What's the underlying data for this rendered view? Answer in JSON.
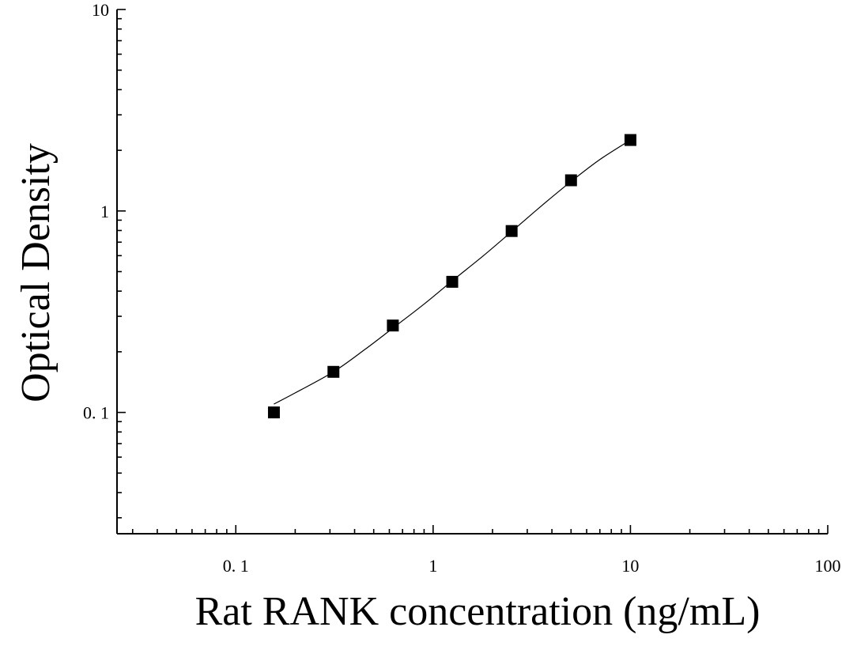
{
  "chart_data": {
    "type": "scatter",
    "title": "",
    "xlabel": "Rat RANK concentration (ng/mL)",
    "ylabel": "Optical Density",
    "x_scale": "log",
    "y_scale": "log",
    "xlim": [
      0.025,
      100
    ],
    "ylim": [
      0.025,
      10
    ],
    "x_ticks": [
      {
        "value": 0.1,
        "label": "0. 1"
      },
      {
        "value": 1,
        "label": "1"
      },
      {
        "value": 10,
        "label": "10"
      },
      {
        "value": 100,
        "label": "100"
      }
    ],
    "y_ticks": [
      {
        "value": 0.1,
        "label": "0. 1"
      },
      {
        "value": 1,
        "label": "1"
      },
      {
        "value": 10,
        "label": "10"
      }
    ],
    "grid": false,
    "legend": "none",
    "series": [
      {
        "marker": "square",
        "color": "#000000",
        "points": [
          {
            "x": 0.156,
            "y": 0.1
          },
          {
            "x": 0.3125,
            "y": 0.159
          },
          {
            "x": 0.625,
            "y": 0.27
          },
          {
            "x": 1.25,
            "y": 0.445
          },
          {
            "x": 2.5,
            "y": 0.795
          },
          {
            "x": 5,
            "y": 1.42
          },
          {
            "x": 10,
            "y": 2.25
          }
        ]
      }
    ],
    "fit_curve": {
      "color": "#000000",
      "points": [
        {
          "x": 0.156,
          "y": 0.11
        },
        {
          "x": 0.2,
          "y": 0.125
        },
        {
          "x": 0.3125,
          "y": 0.159
        },
        {
          "x": 0.45,
          "y": 0.205
        },
        {
          "x": 0.625,
          "y": 0.262
        },
        {
          "x": 0.9,
          "y": 0.345
        },
        {
          "x": 1.25,
          "y": 0.45
        },
        {
          "x": 1.8,
          "y": 0.6
        },
        {
          "x": 2.5,
          "y": 0.79
        },
        {
          "x": 3.5,
          "y": 1.05
        },
        {
          "x": 5,
          "y": 1.4
        },
        {
          "x": 7,
          "y": 1.8
        },
        {
          "x": 10,
          "y": 2.25
        }
      ]
    }
  }
}
